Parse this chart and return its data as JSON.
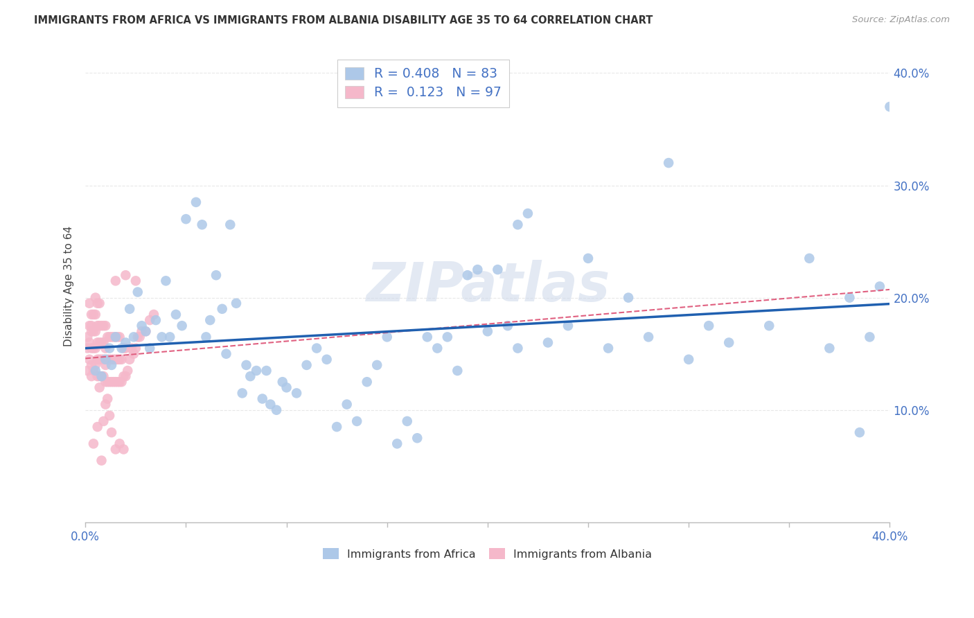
{
  "title": "IMMIGRANTS FROM AFRICA VS IMMIGRANTS FROM ALBANIA DISABILITY AGE 35 TO 64 CORRELATION CHART",
  "source": "Source: ZipAtlas.com",
  "ylabel": "Disability Age 35 to 64",
  "xlim": [
    0.0,
    0.4
  ],
  "ylim": [
    0.0,
    0.42
  ],
  "yticks": [
    0.1,
    0.2,
    0.3,
    0.4
  ],
  "xtick_count": 9,
  "africa_R": 0.408,
  "africa_N": 83,
  "albania_R": 0.123,
  "albania_N": 97,
  "africa_color": "#adc8e8",
  "albania_color": "#f5b8ca",
  "africa_line_color": "#2060b0",
  "albania_line_color": "#e06080",
  "background_color": "#ffffff",
  "grid_color": "#e8e8e8",
  "watermark": "ZIPatlas",
  "tick_color": "#4472c4",
  "africa_x": [
    0.005,
    0.008,
    0.01,
    0.012,
    0.013,
    0.015,
    0.018,
    0.02,
    0.022,
    0.024,
    0.026,
    0.028,
    0.03,
    0.032,
    0.035,
    0.038,
    0.04,
    0.042,
    0.045,
    0.048,
    0.05,
    0.055,
    0.058,
    0.06,
    0.062,
    0.065,
    0.068,
    0.07,
    0.072,
    0.075,
    0.078,
    0.08,
    0.082,
    0.085,
    0.088,
    0.09,
    0.092,
    0.095,
    0.098,
    0.1,
    0.105,
    0.11,
    0.115,
    0.12,
    0.125,
    0.13,
    0.135,
    0.14,
    0.145,
    0.15,
    0.155,
    0.16,
    0.165,
    0.17,
    0.175,
    0.18,
    0.185,
    0.19,
    0.195,
    0.2,
    0.21,
    0.215,
    0.22,
    0.23,
    0.24,
    0.25,
    0.26,
    0.27,
    0.28,
    0.29,
    0.3,
    0.32,
    0.34,
    0.36,
    0.37,
    0.38,
    0.385,
    0.39,
    0.395,
    0.4,
    0.205,
    0.215,
    0.31
  ],
  "africa_y": [
    0.135,
    0.13,
    0.145,
    0.155,
    0.14,
    0.165,
    0.155,
    0.16,
    0.19,
    0.165,
    0.205,
    0.175,
    0.17,
    0.155,
    0.18,
    0.165,
    0.215,
    0.165,
    0.185,
    0.175,
    0.27,
    0.285,
    0.265,
    0.165,
    0.18,
    0.22,
    0.19,
    0.15,
    0.265,
    0.195,
    0.115,
    0.14,
    0.13,
    0.135,
    0.11,
    0.135,
    0.105,
    0.1,
    0.125,
    0.12,
    0.115,
    0.14,
    0.155,
    0.145,
    0.085,
    0.105,
    0.09,
    0.125,
    0.14,
    0.165,
    0.07,
    0.09,
    0.075,
    0.165,
    0.155,
    0.165,
    0.135,
    0.22,
    0.225,
    0.17,
    0.175,
    0.265,
    0.275,
    0.16,
    0.175,
    0.235,
    0.155,
    0.2,
    0.165,
    0.32,
    0.145,
    0.16,
    0.175,
    0.235,
    0.155,
    0.2,
    0.08,
    0.165,
    0.21,
    0.37,
    0.225,
    0.155,
    0.175
  ],
  "albania_x": [
    0.001,
    0.001,
    0.001,
    0.002,
    0.002,
    0.002,
    0.002,
    0.003,
    0.003,
    0.003,
    0.003,
    0.003,
    0.004,
    0.004,
    0.004,
    0.004,
    0.005,
    0.005,
    0.005,
    0.005,
    0.006,
    0.006,
    0.006,
    0.006,
    0.006,
    0.007,
    0.007,
    0.007,
    0.007,
    0.007,
    0.008,
    0.008,
    0.008,
    0.008,
    0.009,
    0.009,
    0.009,
    0.009,
    0.01,
    0.01,
    0.01,
    0.01,
    0.011,
    0.011,
    0.011,
    0.012,
    0.012,
    0.012,
    0.013,
    0.013,
    0.013,
    0.014,
    0.014,
    0.014,
    0.015,
    0.015,
    0.015,
    0.016,
    0.016,
    0.016,
    0.017,
    0.017,
    0.017,
    0.018,
    0.018,
    0.019,
    0.019,
    0.02,
    0.02,
    0.021,
    0.022,
    0.023,
    0.024,
    0.025,
    0.026,
    0.027,
    0.028,
    0.03,
    0.032,
    0.034,
    0.004,
    0.006,
    0.008,
    0.01,
    0.012,
    0.003,
    0.007,
    0.009,
    0.011,
    0.013,
    0.015,
    0.017,
    0.019,
    0.005,
    0.015,
    0.02,
    0.025
  ],
  "albania_y": [
    0.135,
    0.155,
    0.165,
    0.145,
    0.16,
    0.175,
    0.195,
    0.14,
    0.155,
    0.17,
    0.175,
    0.185,
    0.135,
    0.155,
    0.17,
    0.185,
    0.14,
    0.155,
    0.17,
    0.185,
    0.13,
    0.145,
    0.16,
    0.175,
    0.195,
    0.13,
    0.145,
    0.16,
    0.175,
    0.195,
    0.13,
    0.145,
    0.16,
    0.175,
    0.13,
    0.145,
    0.16,
    0.175,
    0.125,
    0.14,
    0.155,
    0.175,
    0.125,
    0.145,
    0.165,
    0.125,
    0.145,
    0.165,
    0.125,
    0.145,
    0.165,
    0.125,
    0.145,
    0.165,
    0.125,
    0.145,
    0.165,
    0.125,
    0.145,
    0.165,
    0.125,
    0.145,
    0.165,
    0.125,
    0.145,
    0.13,
    0.155,
    0.13,
    0.155,
    0.135,
    0.145,
    0.155,
    0.15,
    0.155,
    0.165,
    0.165,
    0.17,
    0.17,
    0.18,
    0.185,
    0.07,
    0.085,
    0.055,
    0.105,
    0.095,
    0.13,
    0.12,
    0.09,
    0.11,
    0.08,
    0.065,
    0.07,
    0.065,
    0.2,
    0.215,
    0.22,
    0.215
  ]
}
